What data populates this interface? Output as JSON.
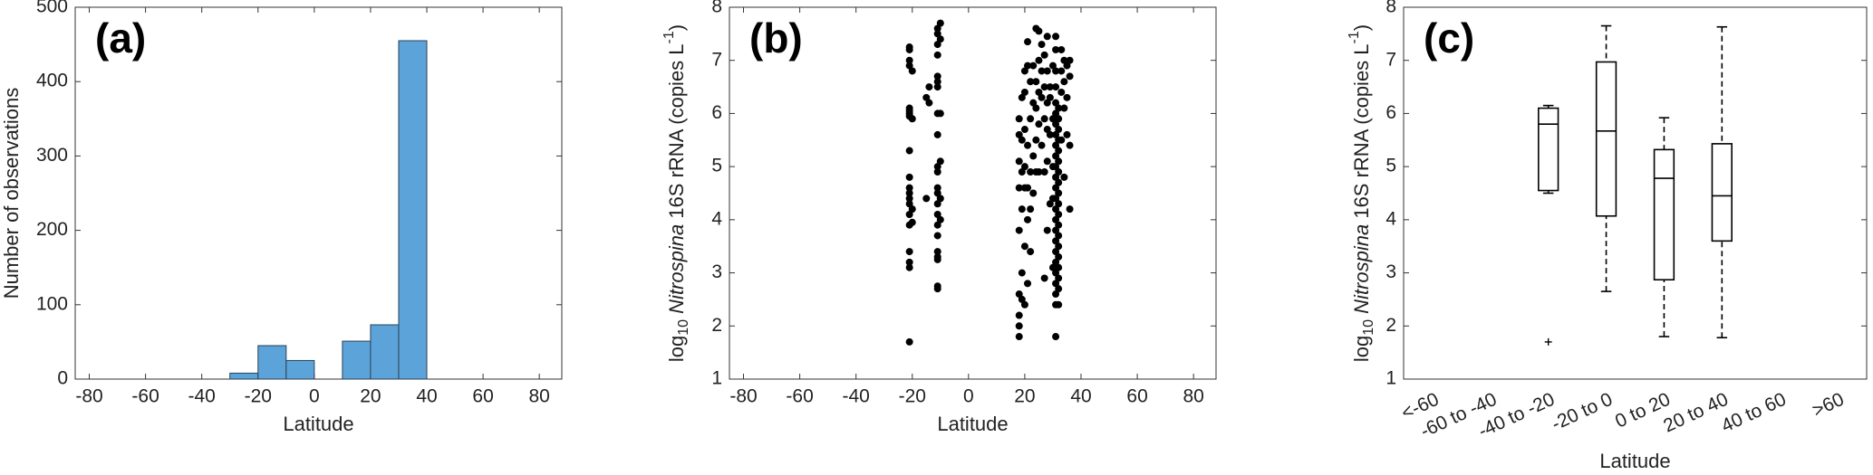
{
  "chart_data": [
    {
      "type": "histogram",
      "title": "(a)",
      "xlabel": "Latitude",
      "ylabel": "Number of observations",
      "bins": [
        -30,
        -20,
        -10,
        0,
        10,
        20,
        30,
        40
      ],
      "counts": [
        8,
        45,
        25,
        0,
        51,
        73,
        455
      ],
      "color": "#5ba3d9",
      "edgecolor": "#2b4257",
      "xlim": [
        -85,
        88
      ],
      "xticks": [
        -80,
        -60,
        -40,
        -20,
        0,
        20,
        40,
        60,
        80
      ],
      "ylim": [
        0,
        500
      ],
      "yticks": [
        0,
        100,
        200,
        300,
        400,
        500
      ]
    },
    {
      "type": "scatter",
      "title": "(b)",
      "xlabel": "Latitude",
      "ylabel": {
        "log": "log",
        "base": "10",
        "taxon": "Nitrospina",
        "rest": " 16S rRNA (copies L",
        "exp": "-1",
        "end": ")"
      },
      "color": "#000000",
      "x": [
        -21,
        -21,
        -21,
        -21,
        -21,
        -21,
        -21,
        -21,
        -21,
        -21,
        -21,
        -21,
        -21,
        -21,
        -21,
        -21,
        -21,
        -21,
        -21,
        -21,
        -20,
        -20,
        -20,
        -20,
        -15,
        -15,
        -14,
        -14,
        -11,
        -11,
        -11,
        -11,
        -11,
        -11,
        -11,
        -11,
        -11,
        -11,
        -11,
        -11,
        -11,
        -11,
        -11,
        -11,
        -11,
        -11,
        -11,
        -11,
        -11,
        -11,
        -10,
        -10,
        -10,
        -10,
        -10,
        -10,
        18,
        18,
        18,
        18,
        18,
        18,
        18,
        18,
        18,
        19,
        19,
        19,
        19,
        19,
        19,
        20,
        20,
        20,
        20,
        20,
        20,
        20,
        21,
        21,
        21,
        21,
        21,
        21,
        22,
        22,
        22,
        22,
        22,
        23,
        23,
        23,
        23,
        24,
        24,
        24,
        24,
        24,
        25,
        25,
        25,
        25,
        25,
        26,
        26,
        26,
        26,
        27,
        27,
        27,
        27,
        27,
        28,
        28,
        28,
        28,
        28,
        28,
        29,
        29,
        29,
        29,
        30,
        30,
        30,
        30,
        30,
        31,
        31,
        31,
        31,
        31,
        31,
        31,
        31,
        31,
        31,
        31,
        31,
        31,
        31,
        31,
        31,
        31,
        31,
        31,
        31,
        31,
        31,
        31,
        31,
        31,
        32,
        32,
        32,
        32,
        32,
        32,
        32,
        32,
        32,
        32,
        32,
        32,
        32,
        32,
        32,
        32,
        32,
        32,
        32,
        33,
        33,
        33,
        33,
        34,
        34,
        34,
        34,
        35,
        35,
        35,
        36,
        36,
        36,
        36
      ],
      "y": [
        7.25,
        7.2,
        7.0,
        6.9,
        6.1,
        6.05,
        6.0,
        5.95,
        5.3,
        4.8,
        4.6,
        4.5,
        4.4,
        4.3,
        4.1,
        3.9,
        3.4,
        3.2,
        3.1,
        1.7,
        6.8,
        5.9,
        4.2,
        3.95,
        6.3,
        4.4,
        6.5,
        6.2,
        7.6,
        7.5,
        7.3,
        7.1,
        6.7,
        6.6,
        6.5,
        6.0,
        5.6,
        5.0,
        4.9,
        4.6,
        4.5,
        4.3,
        4.1,
        3.9,
        3.7,
        3.4,
        3.3,
        3.25,
        2.75,
        2.7,
        7.7,
        7.4,
        6.0,
        5.1,
        4.4,
        4.0,
        1.8,
        2.0,
        2.2,
        2.6,
        3.8,
        4.6,
        5.1,
        5.6,
        5.9,
        2.5,
        3.0,
        4.2,
        4.9,
        5.5,
        6.3,
        2.4,
        3.5,
        4.6,
        5.0,
        5.7,
        6.4,
        6.8,
        2.8,
        4.0,
        4.6,
        5.4,
        6.9,
        7.35,
        3.4,
        4.2,
        4.9,
        5.9,
        6.6,
        4.5,
        5.2,
        6.2,
        6.9,
        4.9,
        5.5,
        6.1,
        6.6,
        7.6,
        4.9,
        5.8,
        6.4,
        7.0,
        7.55,
        5.4,
        6.3,
        6.8,
        7.3,
        2.9,
        4.9,
        5.9,
        6.5,
        7.1,
        3.8,
        5.1,
        5.7,
        6.2,
        6.8,
        7.45,
        4.3,
        5.6,
        6.3,
        6.5,
        3.1,
        4.4,
        5.0,
        5.9,
        6.9,
        1.8,
        2.4,
        2.6,
        2.8,
        3.0,
        3.2,
        3.4,
        3.6,
        3.8,
        4.0,
        4.2,
        4.4,
        4.6,
        4.8,
        5.0,
        5.2,
        5.4,
        5.6,
        5.8,
        6.0,
        6.2,
        6.5,
        6.8,
        7.2,
        7.45,
        2.4,
        2.7,
        2.9,
        3.1,
        3.3,
        3.5,
        3.7,
        3.9,
        4.1,
        4.3,
        4.5,
        4.7,
        4.9,
        5.1,
        5.3,
        5.5,
        5.7,
        5.9,
        6.1,
        5.5,
        6.4,
        6.8,
        7.2,
        4.8,
        6.1,
        6.6,
        7.0,
        5.6,
        6.3,
        6.9,
        4.2,
        5.4,
        6.7,
        7.0
      ],
      "xlim": [
        -85,
        88
      ],
      "xticks": [
        -80,
        -60,
        -40,
        -20,
        0,
        20,
        40,
        60,
        80
      ],
      "ylim": [
        1,
        8
      ],
      "yticks": [
        1,
        2,
        3,
        4,
        5,
        6,
        7,
        8
      ]
    },
    {
      "type": "box",
      "title": "(c)",
      "xlabel": "Latitude",
      "ylabel": {
        "log": "log",
        "base": "10",
        "taxon": "Nitrospina",
        "rest": " 16S rRNA (copies L",
        "exp": "-1",
        "end": ")"
      },
      "categories": [
        "<-60",
        "-60 to -40",
        "-40 to -20",
        "-20 to 0",
        "0 to 20",
        "20 to 40",
        "40 to 60",
        ">60"
      ],
      "boxes": [
        null,
        null,
        {
          "whislo": 4.5,
          "q1": 4.55,
          "med": 5.8,
          "q3": 6.1,
          "whishi": 6.15,
          "fliers": [
            1.7
          ]
        },
        {
          "whislo": 2.65,
          "q1": 4.07,
          "med": 5.67,
          "q3": 6.97,
          "whishi": 7.65,
          "fliers": []
        },
        {
          "whislo": 1.8,
          "q1": 2.87,
          "med": 4.78,
          "q3": 5.32,
          "whishi": 5.92,
          "fliers": []
        },
        {
          "whislo": 1.78,
          "q1": 3.6,
          "med": 4.45,
          "q3": 5.43,
          "whishi": 7.63,
          "fliers": []
        },
        null,
        null
      ],
      "ylim": [
        1,
        8
      ],
      "yticks": [
        1,
        2,
        3,
        4,
        5,
        6,
        7,
        8
      ]
    }
  ]
}
